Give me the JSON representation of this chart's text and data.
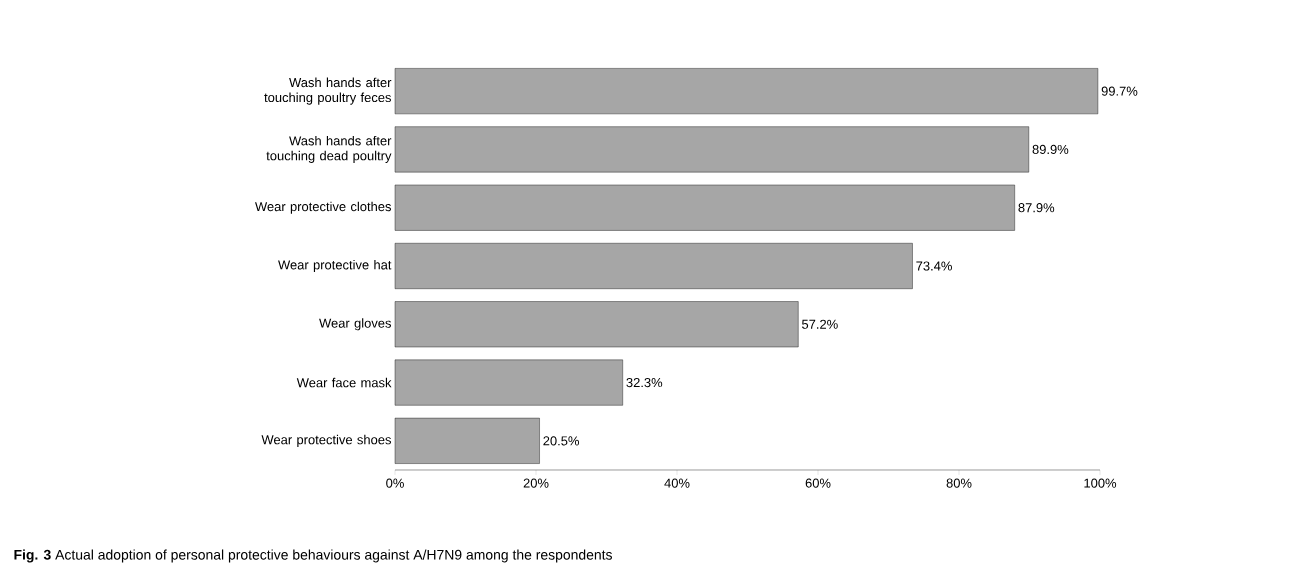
{
  "chart_data": {
    "type": "bar",
    "orientation": "horizontal",
    "categories": [
      "Wash hands after touching poultry feces",
      "Wash hands after touching dead poultry",
      "Wear protective clothes",
      "Wear protective hat",
      "Wear gloves",
      "Wear face mask",
      "Wear protective shoes"
    ],
    "values": [
      99.7,
      89.9,
      87.9,
      73.4,
      57.2,
      32.3,
      20.5
    ],
    "value_labels": [
      "99.7%",
      "89.9%",
      "87.9%",
      "73.4%",
      "57.2%",
      "32.3%",
      "20.5%"
    ],
    "color": "#a6a6a6",
    "xlim": [
      0,
      100
    ],
    "xticks": [
      {
        "value": 0,
        "label": "0%"
      },
      {
        "value": 20,
        "label": "20%"
      },
      {
        "value": 40,
        "label": "40%"
      },
      {
        "value": 60,
        "label": "60%"
      },
      {
        "value": 80,
        "label": "80%"
      },
      {
        "value": 100,
        "label": "100%"
      }
    ],
    "grid": false,
    "annotations": [
      "**Fig. 3** Actual adoption of personal protective behaviours against A/H7N9 among the respondents"
    ]
  }
}
